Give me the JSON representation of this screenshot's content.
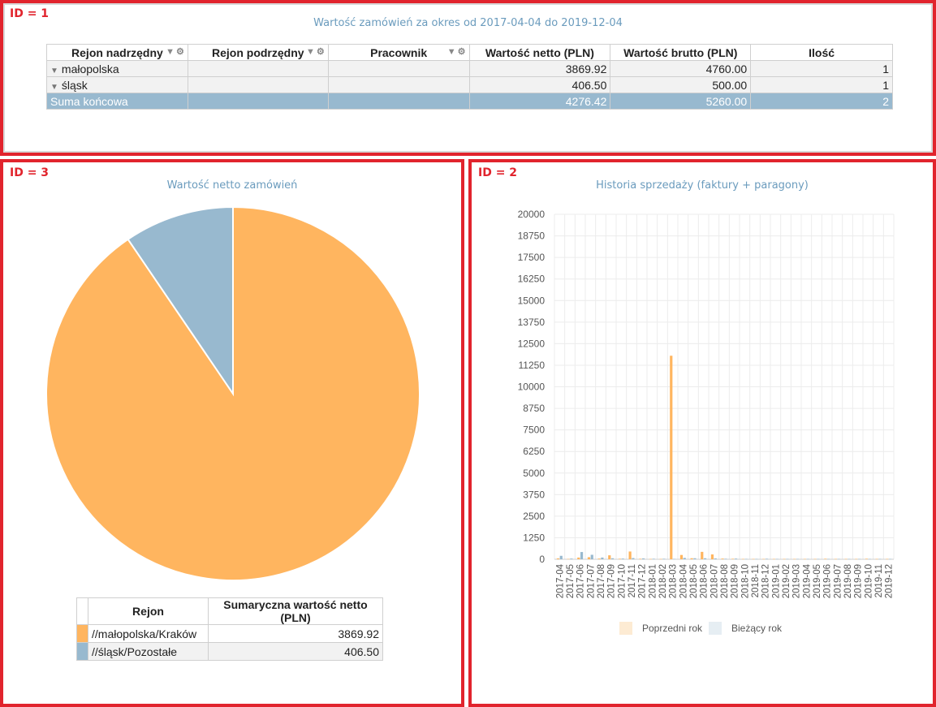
{
  "panel1": {
    "id_label": "ID = 1",
    "title": "Wartość zamówień za okres od 2017-04-04 do 2019-12-04",
    "columns": [
      "Rejon nadrzędny",
      "Rejon podrzędny",
      "Pracownik",
      "Wartość netto (PLN)",
      "Wartość brutto (PLN)",
      "Ilość"
    ],
    "rows": [
      {
        "rejon": "małopolska",
        "netto": "3869.92",
        "brutto": "4760.00",
        "ilosc": "1"
      },
      {
        "rejon": "śląsk",
        "netto": "406.50",
        "brutto": "500.00",
        "ilosc": "1"
      }
    ],
    "total": {
      "label": "Suma końcowa",
      "netto": "4276.42",
      "brutto": "5260.00",
      "ilosc": "2"
    }
  },
  "panel3": {
    "id_label": "ID = 3",
    "title": "Wartość netto zamówień",
    "table_headers": [
      "Rejon",
      "Sumaryczna wartość netto (PLN)"
    ],
    "table_rows": [
      {
        "rejon": "//małopolska/Kraków",
        "value": "3869.92",
        "color": "#ffb55f"
      },
      {
        "rejon": "//śląsk/Pozostałe",
        "value": "406.50",
        "color": "#98b9cf"
      }
    ]
  },
  "panel2": {
    "id_label": "ID = 2",
    "title": "Historia sprzedaży (faktury + paragony)",
    "legend": [
      {
        "label": "Poprzedni rok",
        "color": "#fdebd3"
      },
      {
        "label": "Bieżący rok",
        "color": "#e6eef3"
      }
    ]
  },
  "chart_data": [
    {
      "type": "pie",
      "title": "Wartość netto zamówień",
      "categories": [
        "//małopolska/Kraków",
        "//śląsk/Pozostałe"
      ],
      "values": [
        3869.92,
        406.5
      ],
      "colors": [
        "#ffb55f",
        "#98b9cf"
      ]
    },
    {
      "type": "bar",
      "title": "Historia sprzedaży (faktury + paragony)",
      "categories": [
        "2017-04",
        "2017-05",
        "2017-06",
        "2017-07",
        "2017-08",
        "2017-09",
        "2017-10",
        "2017-11",
        "2017-12",
        "2018-01",
        "2018-02",
        "2018-03",
        "2018-04",
        "2018-05",
        "2018-06",
        "2018-07",
        "2018-08",
        "2018-09",
        "2018-10",
        "2018-11",
        "2018-12",
        "2019-01",
        "2019-02",
        "2019-03",
        "2019-04",
        "2019-05",
        "2019-06",
        "2019-07",
        "2019-08",
        "2019-09",
        "2019-10",
        "2019-11",
        "2019-12"
      ],
      "series": [
        {
          "name": "Poprzedni rok",
          "color": "#ffb55f",
          "values": [
            50,
            20,
            100,
            120,
            40,
            230,
            30,
            450,
            30,
            20,
            20,
            11800,
            250,
            60,
            430,
            280,
            40,
            30,
            20,
            20,
            20,
            20,
            20,
            20,
            20,
            20,
            30,
            20,
            20,
            20,
            30,
            20,
            20
          ]
        },
        {
          "name": "Bieżący rok",
          "color": "#98b9cf",
          "values": [
            200,
            40,
            420,
            260,
            100,
            60,
            40,
            70,
            50,
            30,
            30,
            20,
            80,
            60,
            60,
            50,
            30,
            40,
            20,
            20,
            30,
            20,
            20,
            20,
            20,
            20,
            20,
            20,
            20,
            20,
            20,
            20,
            20
          ]
        }
      ],
      "ylim": [
        0,
        20000
      ],
      "yticks": [
        0,
        1250,
        2500,
        3750,
        5000,
        6250,
        7500,
        8750,
        10000,
        11250,
        12500,
        13750,
        15000,
        16250,
        17500,
        18750,
        20000
      ],
      "grid": true,
      "legend": "bottom"
    }
  ]
}
